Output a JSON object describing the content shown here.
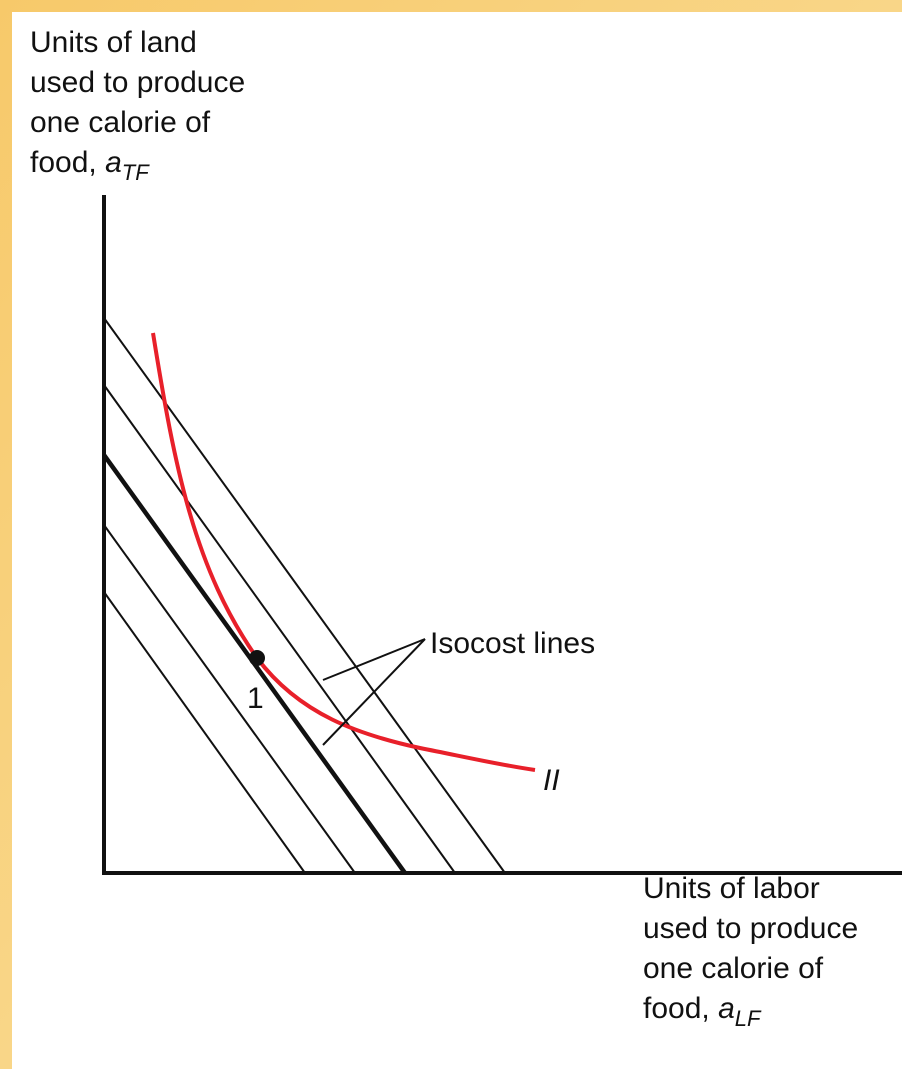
{
  "y_axis_label": {
    "lines": [
      "Units of land",
      "used to produce",
      "one calorie of"
    ],
    "last_prefix": "food, ",
    "symbol": "a",
    "subscript": "TF"
  },
  "x_axis_label": {
    "lines": [
      "Units of labor",
      "used to produce",
      "one calorie of"
    ],
    "last_prefix": "food, ",
    "symbol": "a",
    "subscript": "LF"
  },
  "annotations": {
    "isocost": "Isocost lines",
    "isoquant": "II",
    "point": "1"
  }
}
